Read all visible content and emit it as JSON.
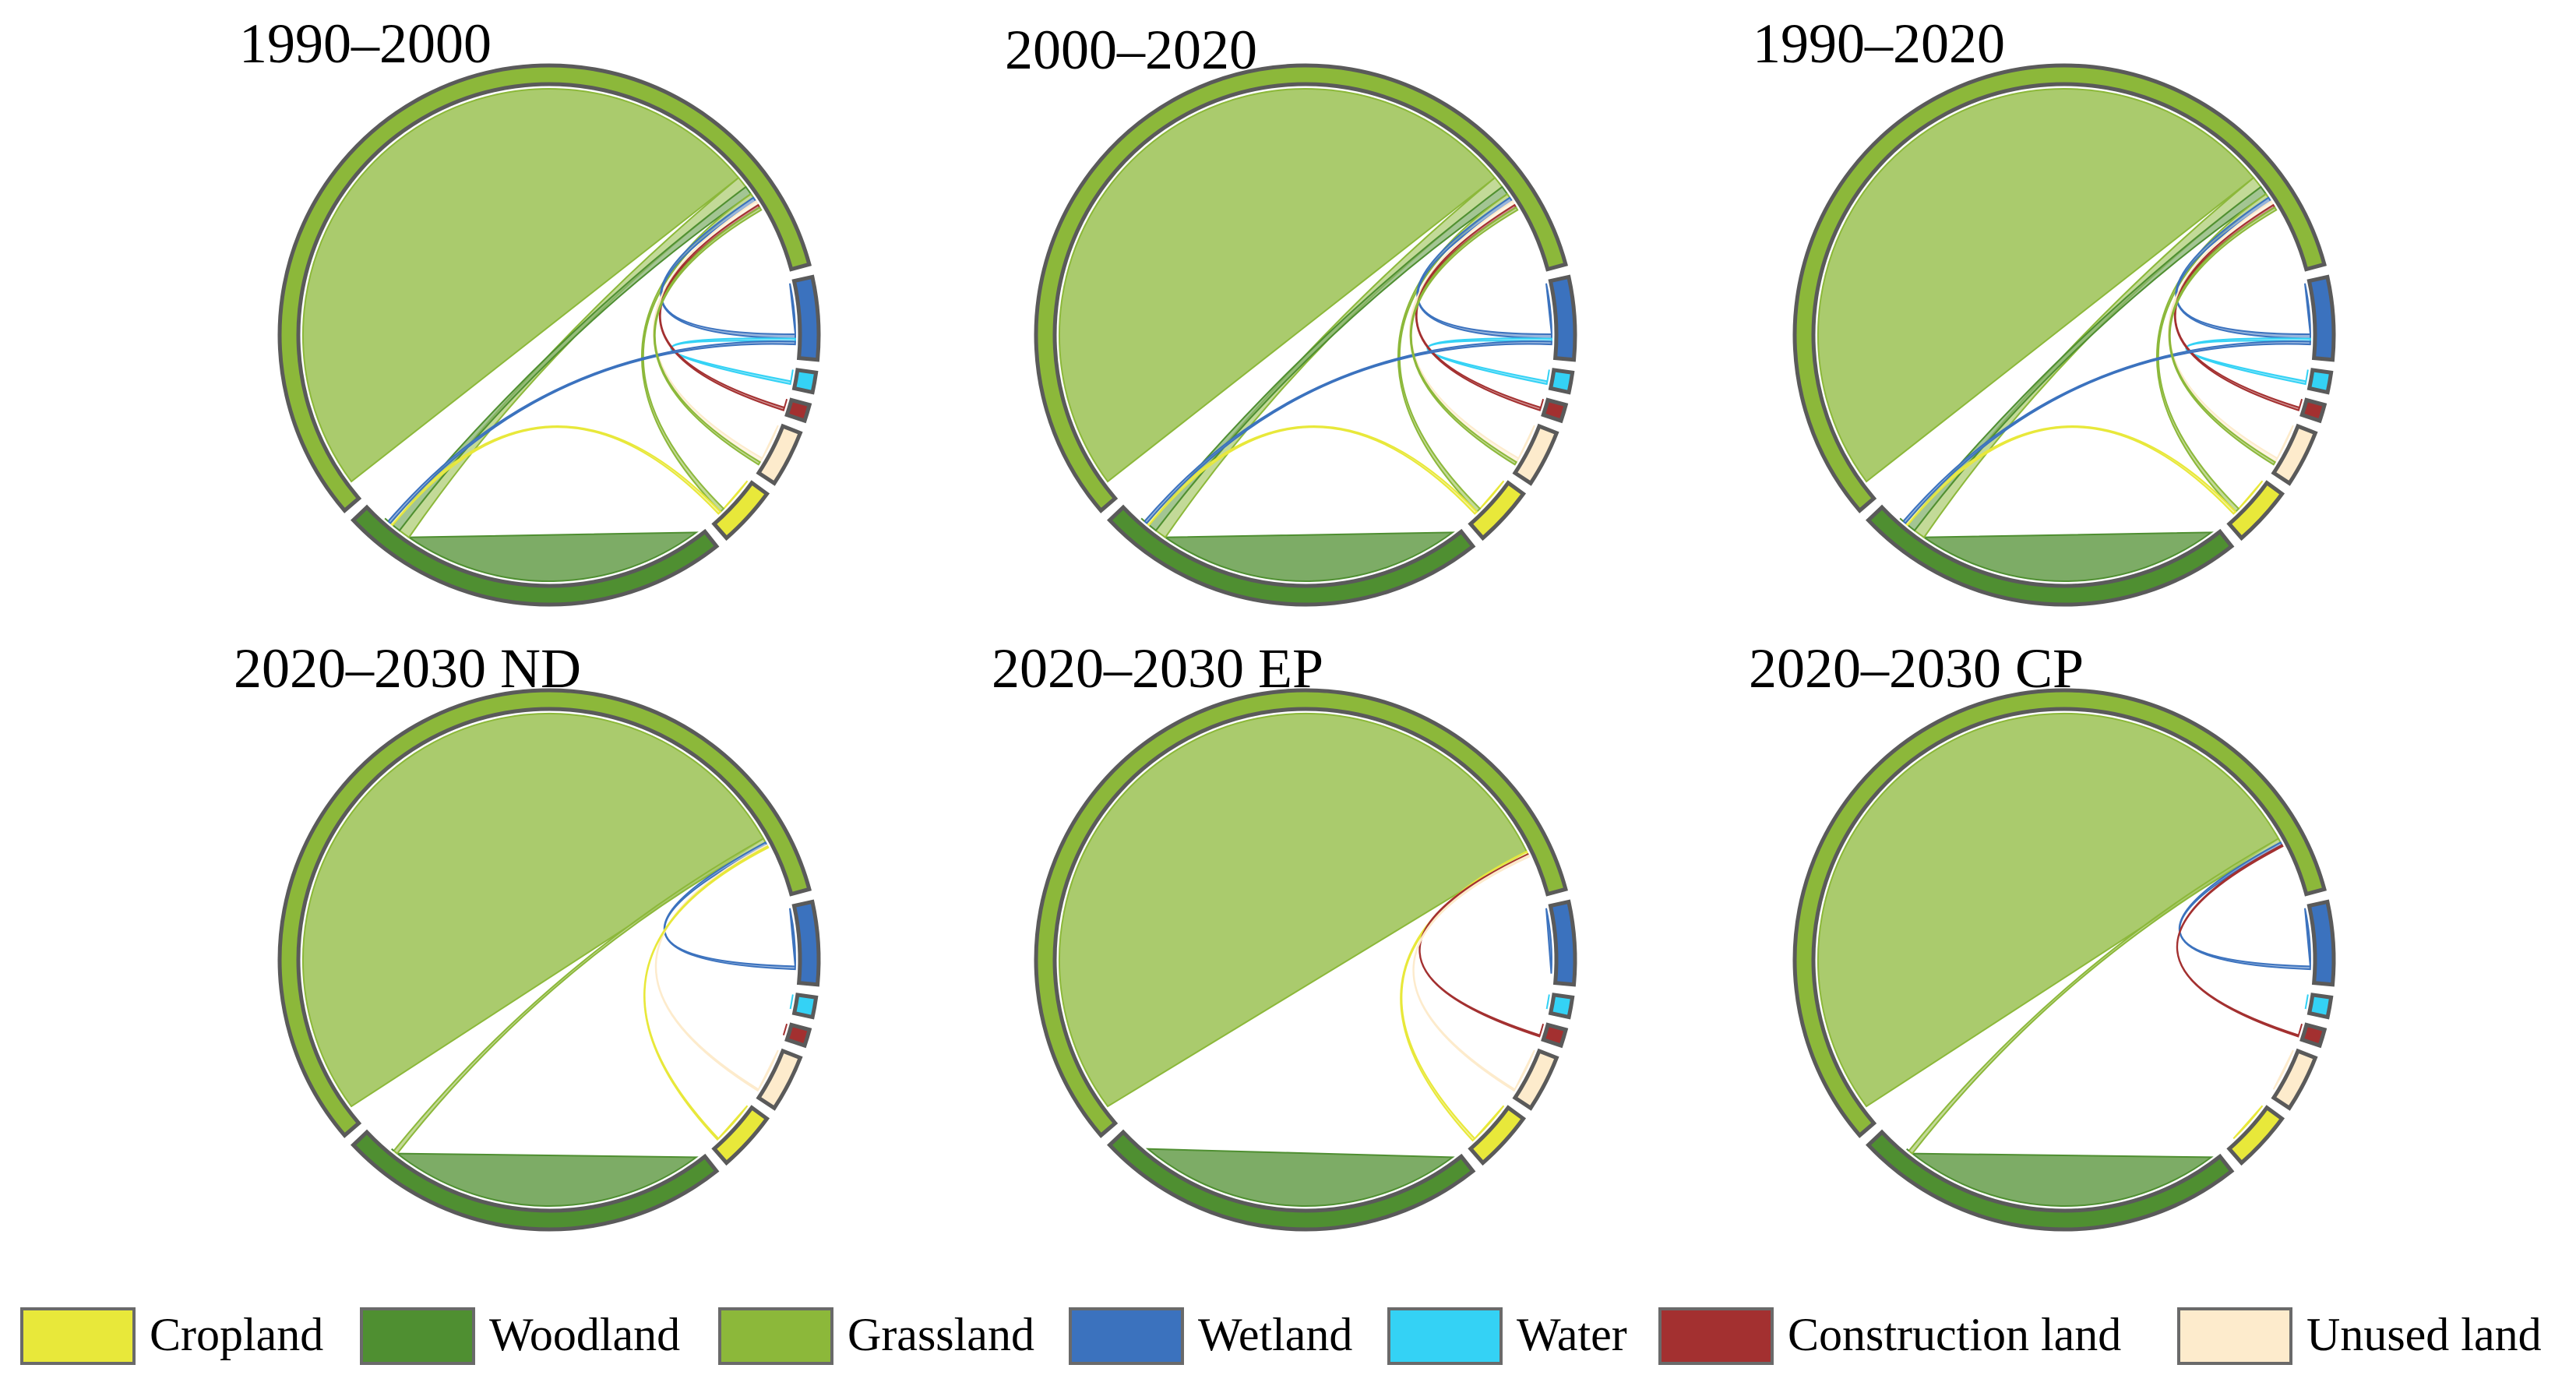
{
  "chart_data": {
    "type": "chord",
    "categories": [
      "Cropland",
      "Woodland",
      "Grassland",
      "Wetland",
      "Water",
      "Construction land",
      "Unused land"
    ],
    "colors": {
      "Cropland": "#e8e83a",
      "Woodland": "#4f8f31",
      "Grassland": "#8cb83a",
      "Wetland": "#3b72be",
      "Water": "#34d2f5",
      "Construction land": "#a33030",
      "Unused land": "#fdebcc"
    },
    "panels": [
      {
        "title": "1990–2000",
        "segments": [
          {
            "name": "Grassland",
            "value": 58
          },
          {
            "name": "Wetland",
            "value": 5
          },
          {
            "name": "Water",
            "value": 1.2
          },
          {
            "name": "Construction land",
            "value": 1.0
          },
          {
            "name": "Unused land",
            "value": 3.4
          },
          {
            "name": "Cropland",
            "value": 3.6
          },
          {
            "name": "Woodland",
            "value": 24
          }
        ],
        "flows": [
          {
            "from": "Grassland",
            "to": "Grassland",
            "value": 52
          },
          {
            "from": "Woodland",
            "to": "Woodland",
            "value": 21
          },
          {
            "from": "Wetland",
            "to": "Wetland",
            "value": 3.5
          },
          {
            "from": "Cropland",
            "to": "Cropland",
            "value": 2.5
          },
          {
            "from": "Unused land",
            "to": "Unused land",
            "value": 2.5
          },
          {
            "from": "Water",
            "to": "Water",
            "value": 0.8
          },
          {
            "from": "Construction land",
            "to": "Construction land",
            "value": 0.6
          },
          {
            "from": "Grassland",
            "to": "Woodland",
            "value": 0.8
          },
          {
            "from": "Woodland",
            "to": "Grassland",
            "value": 0.6
          },
          {
            "from": "Grassland",
            "to": "Cropland",
            "value": 0.3
          },
          {
            "from": "Wetland",
            "to": "Grassland",
            "value": 0.3
          },
          {
            "from": "Water",
            "to": "Wetland",
            "value": 0.2
          },
          {
            "from": "Unused land",
            "to": "Grassland",
            "value": 0.3
          },
          {
            "from": "Construction land",
            "to": "Grassland",
            "value": 0.2
          },
          {
            "from": "Cropland",
            "to": "Woodland",
            "value": 0.2
          },
          {
            "from": "Wetland",
            "to": "Woodland",
            "value": 0.2
          },
          {
            "from": "Grassland",
            "to": "Unused land",
            "value": 0.2
          },
          {
            "from": "Woodland",
            "to": "Woodland",
            "value": 0.3
          }
        ]
      },
      {
        "title": "2000–2020",
        "segments": [
          {
            "name": "Grassland",
            "value": 58
          },
          {
            "name": "Wetland",
            "value": 5
          },
          {
            "name": "Water",
            "value": 1.2
          },
          {
            "name": "Construction land",
            "value": 1.0
          },
          {
            "name": "Unused land",
            "value": 3.4
          },
          {
            "name": "Cropland",
            "value": 3.6
          },
          {
            "name": "Woodland",
            "value": 24
          }
        ],
        "flows": [
          {
            "from": "Grassland",
            "to": "Grassland",
            "value": 52
          },
          {
            "from": "Woodland",
            "to": "Woodland",
            "value": 21
          },
          {
            "from": "Wetland",
            "to": "Wetland",
            "value": 3.5
          },
          {
            "from": "Cropland",
            "to": "Cropland",
            "value": 2.5
          },
          {
            "from": "Unused land",
            "to": "Unused land",
            "value": 2.5
          },
          {
            "from": "Water",
            "to": "Water",
            "value": 0.8
          },
          {
            "from": "Construction land",
            "to": "Construction land",
            "value": 0.6
          },
          {
            "from": "Grassland",
            "to": "Woodland",
            "value": 0.8
          },
          {
            "from": "Woodland",
            "to": "Grassland",
            "value": 0.6
          },
          {
            "from": "Grassland",
            "to": "Cropland",
            "value": 0.3
          },
          {
            "from": "Wetland",
            "to": "Grassland",
            "value": 0.3
          },
          {
            "from": "Water",
            "to": "Wetland",
            "value": 0.2
          },
          {
            "from": "Unused land",
            "to": "Grassland",
            "value": 0.3
          },
          {
            "from": "Construction land",
            "to": "Grassland",
            "value": 0.2
          },
          {
            "from": "Cropland",
            "to": "Woodland",
            "value": 0.2
          },
          {
            "from": "Wetland",
            "to": "Woodland",
            "value": 0.2
          },
          {
            "from": "Grassland",
            "to": "Unused land",
            "value": 0.2
          },
          {
            "from": "Woodland",
            "to": "Woodland",
            "value": 0.3
          }
        ]
      },
      {
        "title": "1990–2020",
        "segments": [
          {
            "name": "Grassland",
            "value": 58
          },
          {
            "name": "Wetland",
            "value": 5
          },
          {
            "name": "Water",
            "value": 1.2
          },
          {
            "name": "Construction land",
            "value": 1.0
          },
          {
            "name": "Unused land",
            "value": 3.4
          },
          {
            "name": "Cropland",
            "value": 3.6
          },
          {
            "name": "Woodland",
            "value": 24
          }
        ],
        "flows": [
          {
            "from": "Grassland",
            "to": "Grassland",
            "value": 52
          },
          {
            "from": "Woodland",
            "to": "Woodland",
            "value": 21
          },
          {
            "from": "Wetland",
            "to": "Wetland",
            "value": 3.5
          },
          {
            "from": "Cropland",
            "to": "Cropland",
            "value": 2.5
          },
          {
            "from": "Unused land",
            "to": "Unused land",
            "value": 2.5
          },
          {
            "from": "Water",
            "to": "Water",
            "value": 0.8
          },
          {
            "from": "Construction land",
            "to": "Construction land",
            "value": 0.6
          },
          {
            "from": "Grassland",
            "to": "Woodland",
            "value": 0.8
          },
          {
            "from": "Woodland",
            "to": "Grassland",
            "value": 0.6
          },
          {
            "from": "Grassland",
            "to": "Cropland",
            "value": 0.3
          },
          {
            "from": "Wetland",
            "to": "Grassland",
            "value": 0.3
          },
          {
            "from": "Water",
            "to": "Wetland",
            "value": 0.2
          },
          {
            "from": "Unused land",
            "to": "Grassland",
            "value": 0.3
          },
          {
            "from": "Construction land",
            "to": "Grassland",
            "value": 0.2
          },
          {
            "from": "Cropland",
            "to": "Woodland",
            "value": 0.2
          },
          {
            "from": "Wetland",
            "to": "Woodland",
            "value": 0.2
          },
          {
            "from": "Grassland",
            "to": "Unused land",
            "value": 0.2
          },
          {
            "from": "Woodland",
            "to": "Woodland",
            "value": 0.3
          }
        ]
      },
      {
        "title": "2020–2030 ND",
        "segments": [
          {
            "name": "Grassland",
            "value": 58
          },
          {
            "name": "Wetland",
            "value": 5
          },
          {
            "name": "Water",
            "value": 1.2
          },
          {
            "name": "Construction land",
            "value": 1.0
          },
          {
            "name": "Unused land",
            "value": 3.4
          },
          {
            "name": "Cropland",
            "value": 3.6
          },
          {
            "name": "Woodland",
            "value": 24
          }
        ],
        "flows": [
          {
            "from": "Grassland",
            "to": "Grassland",
            "value": 55
          },
          {
            "from": "Woodland",
            "to": "Woodland",
            "value": 22
          },
          {
            "from": "Wetland",
            "to": "Wetland",
            "value": 4.0
          },
          {
            "from": "Cropland",
            "to": "Cropland",
            "value": 3.0
          },
          {
            "from": "Unused land",
            "to": "Unused land",
            "value": 3.0
          },
          {
            "from": "Water",
            "to": "Water",
            "value": 1.0
          },
          {
            "from": "Construction land",
            "to": "Construction land",
            "value": 0.8
          },
          {
            "from": "Grassland",
            "to": "Woodland",
            "value": 0.3
          },
          {
            "from": "Wetland",
            "to": "Grassland",
            "value": 0.2
          },
          {
            "from": "Unused land",
            "to": "Grassland",
            "value": 0.1
          },
          {
            "from": "Cropland",
            "to": "Grassland",
            "value": 0.1
          },
          {
            "from": "Woodland",
            "to": "Woodland",
            "value": 0.2
          }
        ]
      },
      {
        "title": "2020–2030 EP",
        "segments": [
          {
            "name": "Grassland",
            "value": 58
          },
          {
            "name": "Wetland",
            "value": 5
          },
          {
            "name": "Water",
            "value": 1.2
          },
          {
            "name": "Construction land",
            "value": 1.0
          },
          {
            "name": "Unused land",
            "value": 3.4
          },
          {
            "name": "Cropland",
            "value": 3.6
          },
          {
            "name": "Woodland",
            "value": 24
          }
        ],
        "flows": [
          {
            "from": "Grassland",
            "to": "Grassland",
            "value": 56
          },
          {
            "from": "Woodland",
            "to": "Woodland",
            "value": 22.5
          },
          {
            "from": "Wetland",
            "to": "Wetland",
            "value": 4.5
          },
          {
            "from": "Cropland",
            "to": "Cropland",
            "value": 3.0
          },
          {
            "from": "Unused land",
            "to": "Unused land",
            "value": 3.0
          },
          {
            "from": "Water",
            "to": "Water",
            "value": 1.0
          },
          {
            "from": "Construction land",
            "to": "Construction land",
            "value": 0.8
          },
          {
            "from": "Cropland",
            "to": "Grassland",
            "value": 0.2
          },
          {
            "from": "Construction land",
            "to": "Grassland",
            "value": 0.1
          },
          {
            "from": "Unused land",
            "to": "Grassland",
            "value": 0.1
          }
        ]
      },
      {
        "title": "2020–2030 CP",
        "segments": [
          {
            "name": "Grassland",
            "value": 58
          },
          {
            "name": "Wetland",
            "value": 5
          },
          {
            "name": "Water",
            "value": 1.2
          },
          {
            "name": "Construction land",
            "value": 1.0
          },
          {
            "name": "Unused land",
            "value": 3.4
          },
          {
            "name": "Cropland",
            "value": 3.6
          },
          {
            "name": "Woodland",
            "value": 24
          }
        ],
        "flows": [
          {
            "from": "Grassland",
            "to": "Grassland",
            "value": 55
          },
          {
            "from": "Woodland",
            "to": "Woodland",
            "value": 22
          },
          {
            "from": "Wetland",
            "to": "Wetland",
            "value": 4.0
          },
          {
            "from": "Cropland",
            "to": "Cropland",
            "value": 3.0
          },
          {
            "from": "Unused land",
            "to": "Unused land",
            "value": 3.0
          },
          {
            "from": "Water",
            "to": "Water",
            "value": 1.0
          },
          {
            "from": "Construction land",
            "to": "Construction land",
            "value": 0.8
          },
          {
            "from": "Grassland",
            "to": "Woodland",
            "value": 0.3
          },
          {
            "from": "Wetland",
            "to": "Grassland",
            "value": 0.2
          },
          {
            "from": "Construction land",
            "to": "Grassland",
            "value": 0.1
          },
          {
            "from": "Woodland",
            "to": "Woodland",
            "value": 0.2
          }
        ]
      }
    ],
    "legend": [
      "Cropland",
      "Woodland",
      "Grassland",
      "Wetland",
      "Water",
      "Construction land",
      "Unused land"
    ],
    "legend_position": "bottom"
  }
}
